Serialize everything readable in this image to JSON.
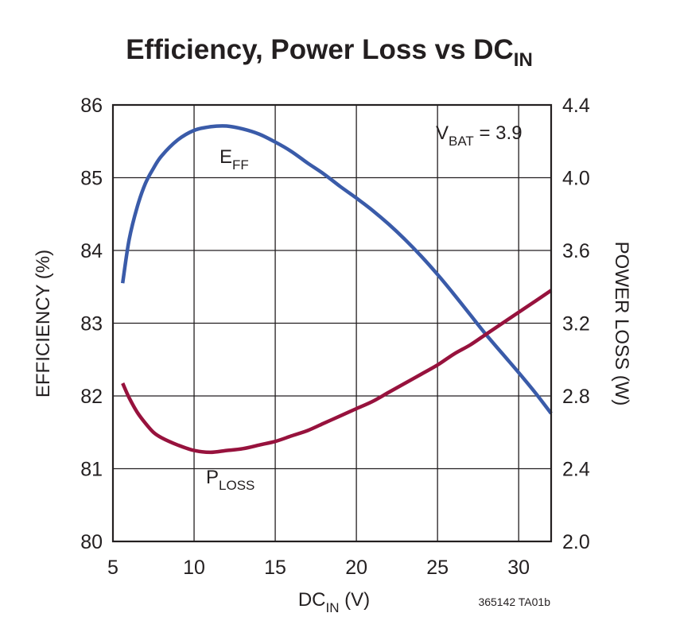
{
  "chart_data": {
    "type": "line",
    "title": {
      "main": "Efficiency, Power Loss vs DC",
      "sub": "IN"
    },
    "xlabel": {
      "main": "DC",
      "sub": "IN",
      "unit": " (V)"
    },
    "ylabel_left": "EFFICIENCY (%)",
    "ylabel_right": "POWER LOSS (W)",
    "xlim": [
      5,
      32
    ],
    "ylim_left": [
      80,
      86
    ],
    "ylim_right": [
      2.0,
      4.4
    ],
    "x_ticks": [
      "5",
      "10",
      "15",
      "20",
      "25",
      "30"
    ],
    "y_left_ticks": [
      "80",
      "81",
      "82",
      "83",
      "84",
      "85",
      "86"
    ],
    "y_right_ticks": [
      "2.0",
      "2.4",
      "2.8",
      "3.2",
      "3.6",
      "4.0",
      "4.4"
    ],
    "grid": true,
    "annotation": {
      "main": "V",
      "sub": "BAT",
      "rest": " = 3.9"
    },
    "series": [
      {
        "name": "EFF",
        "label_main": "E",
        "label_sub": "FF",
        "axis": "left",
        "color": "#3a5ba9",
        "x": [
          5.6,
          6,
          6.5,
          7,
          7.5,
          8,
          9,
          10,
          11,
          12,
          13,
          14,
          15,
          16,
          17,
          18,
          19,
          20,
          21,
          22,
          23,
          24,
          25,
          26,
          27,
          28,
          29,
          30,
          31,
          32
        ],
        "y": [
          83.55,
          84.15,
          84.6,
          84.92,
          85.13,
          85.3,
          85.52,
          85.65,
          85.7,
          85.71,
          85.67,
          85.6,
          85.49,
          85.36,
          85.2,
          85.05,
          84.88,
          84.72,
          84.55,
          84.36,
          84.15,
          83.92,
          83.67,
          83.4,
          83.12,
          82.84,
          82.58,
          82.32,
          82.05,
          81.76
        ]
      },
      {
        "name": "PLOSS",
        "label_main": "P",
        "label_sub": "LOSS",
        "axis": "right",
        "color": "#97123d",
        "x": [
          5.6,
          6,
          6.5,
          7,
          7.5,
          8,
          9,
          10,
          11,
          12,
          13,
          14,
          15,
          16,
          17,
          18,
          19,
          20,
          21,
          22,
          23,
          24,
          25,
          26,
          27,
          28,
          29,
          30,
          31,
          32
        ],
        "y": [
          2.87,
          2.79,
          2.71,
          2.65,
          2.6,
          2.57,
          2.53,
          2.5,
          2.49,
          2.5,
          2.51,
          2.53,
          2.55,
          2.58,
          2.61,
          2.65,
          2.69,
          2.73,
          2.77,
          2.82,
          2.87,
          2.92,
          2.97,
          3.03,
          3.08,
          3.14,
          3.2,
          3.26,
          3.32,
          3.38
        ]
      }
    ]
  },
  "figure_id": "365142 TA01b"
}
